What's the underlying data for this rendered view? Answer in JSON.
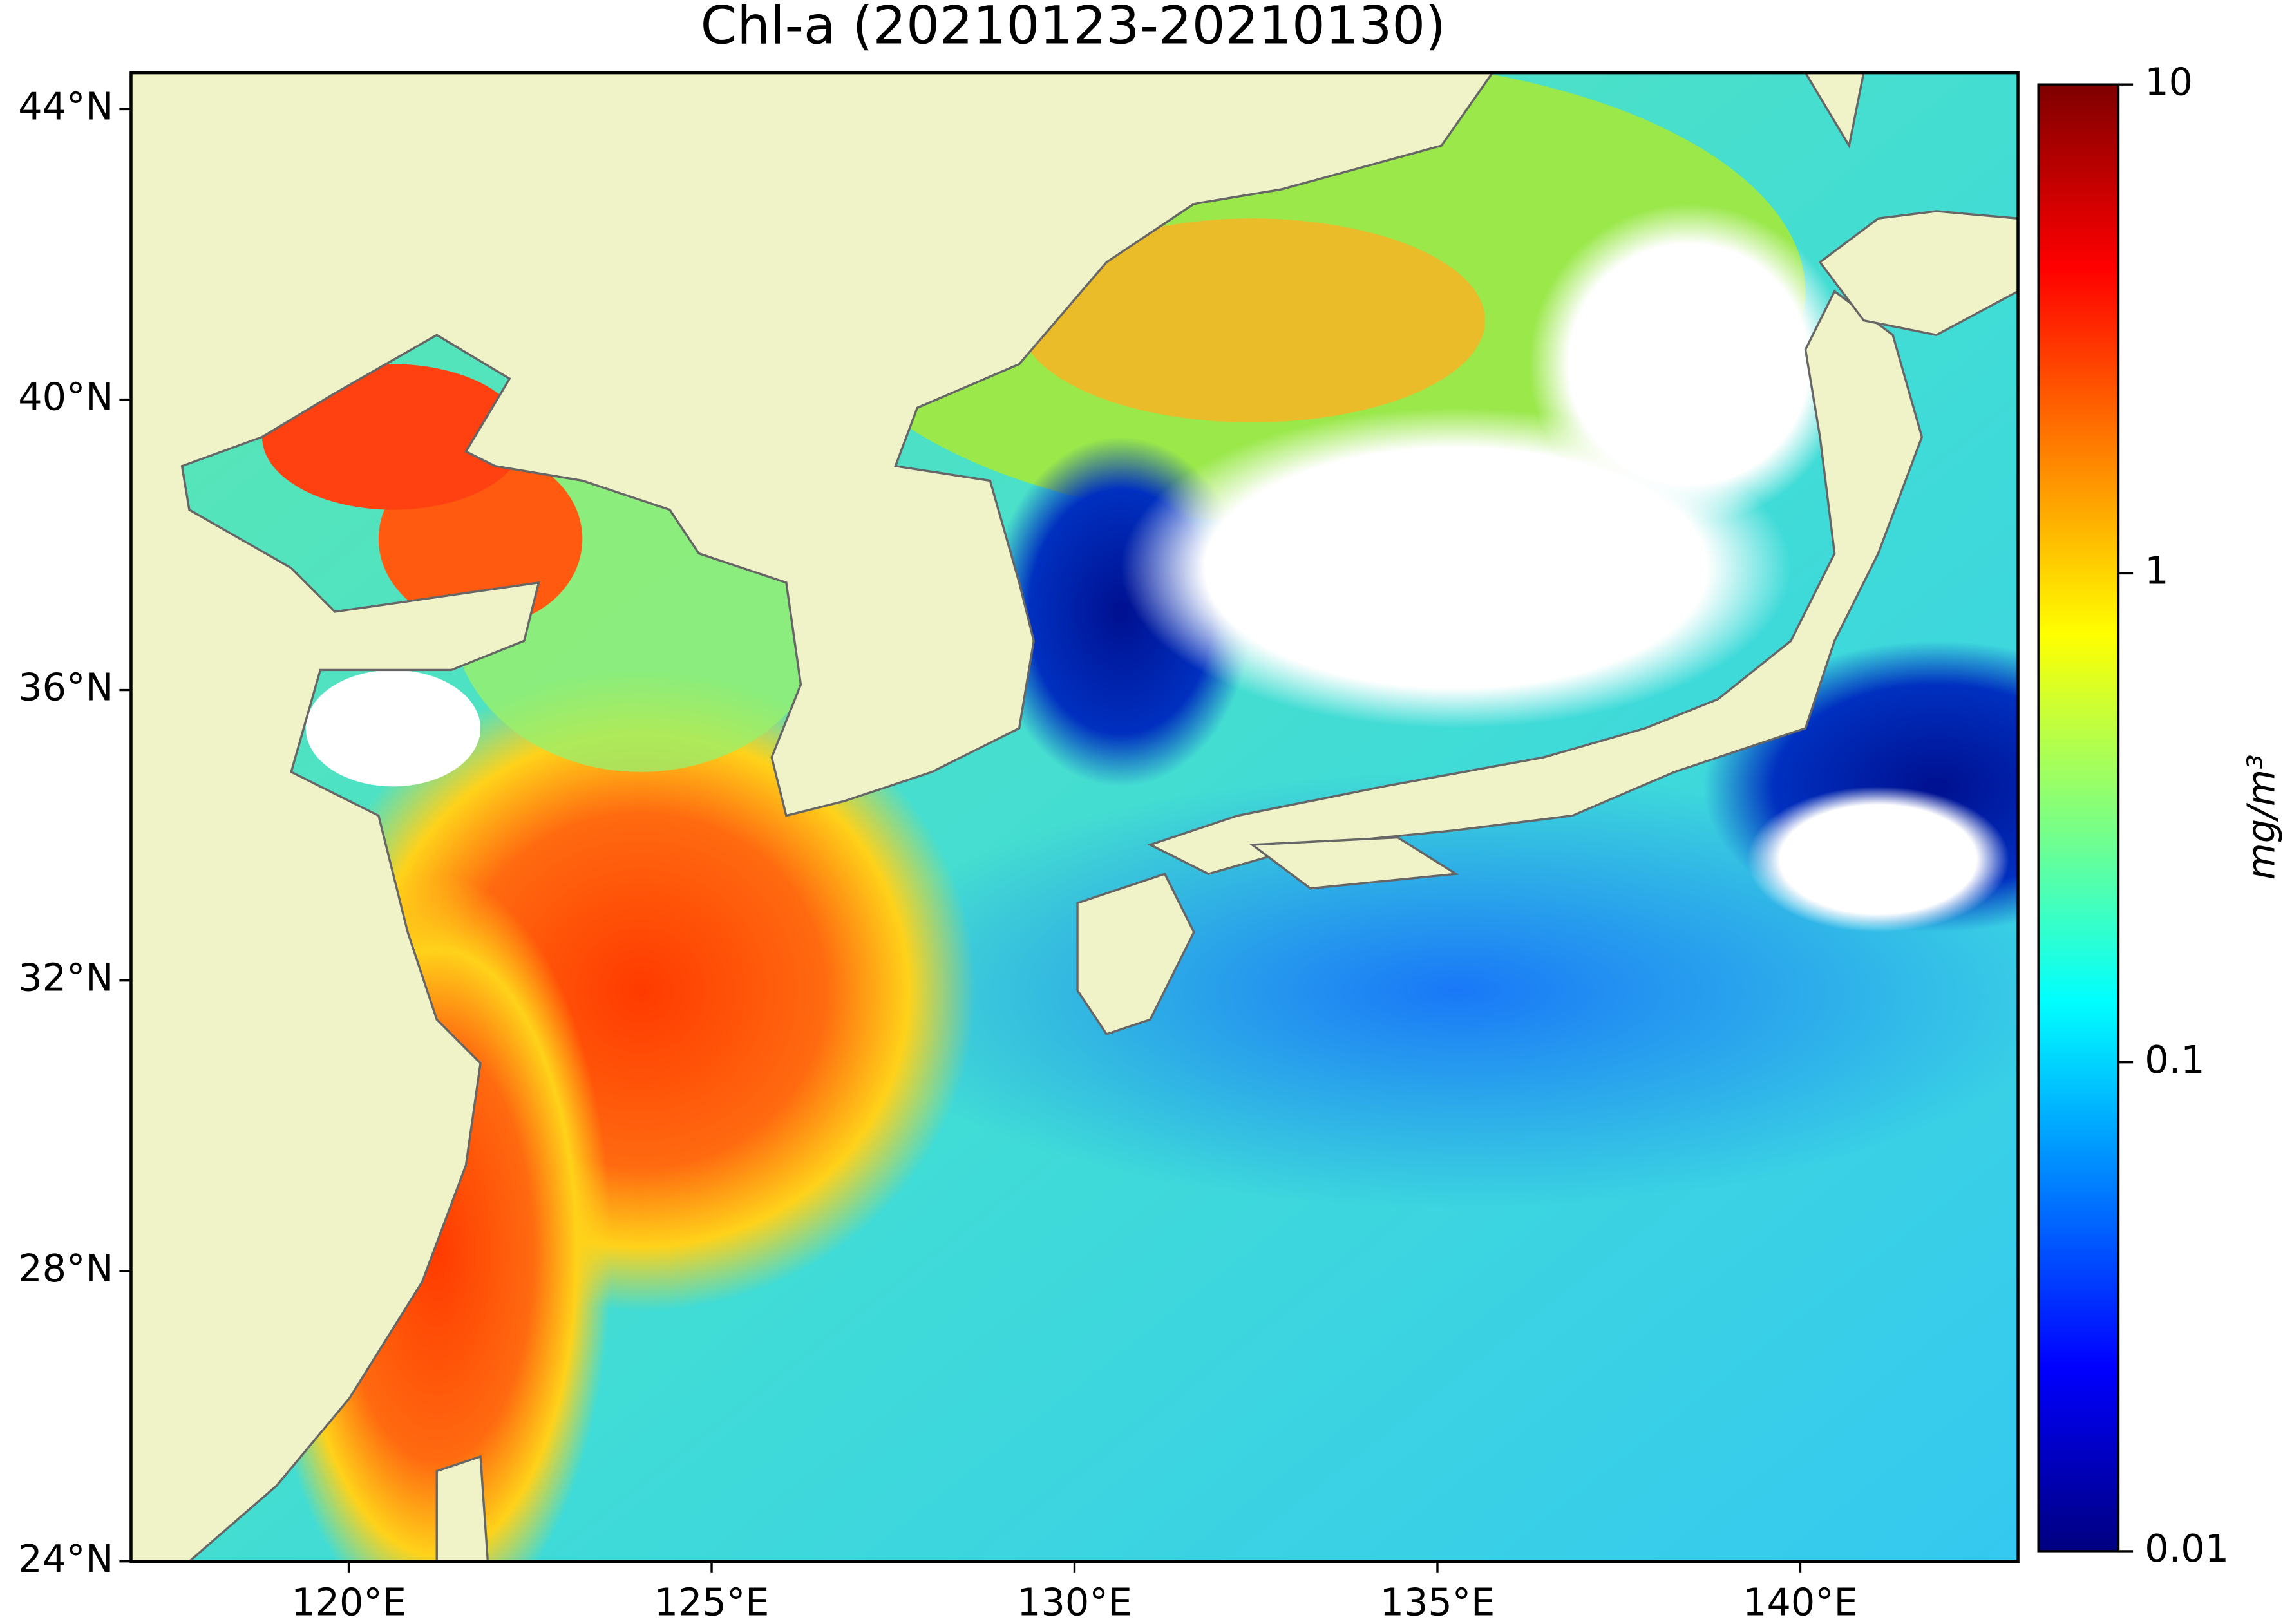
{
  "title": "Chl-a (20210123-20210130)",
  "map": {
    "xlim": [
      117,
      143
    ],
    "ylim": [
      24,
      44.5
    ],
    "xticks": [
      {
        "value": 120,
        "label": "120°E"
      },
      {
        "value": 125,
        "label": "125°E"
      },
      {
        "value": 130,
        "label": "130°E"
      },
      {
        "value": 135,
        "label": "135°E"
      },
      {
        "value": 140,
        "label": "140°E"
      }
    ],
    "yticks": [
      {
        "value": 24,
        "label": "24°N"
      },
      {
        "value": 28,
        "label": "28°N"
      },
      {
        "value": 32,
        "label": "32°N"
      },
      {
        "value": 36,
        "label": "36°N"
      },
      {
        "value": 40,
        "label": "40°N"
      },
      {
        "value": 44,
        "label": "44°N"
      }
    ]
  },
  "colorbar": {
    "label": "mg/m³",
    "lim": [
      0.01,
      10
    ],
    "scale": "log",
    "ticks": [
      0.01,
      0.1,
      1,
      10
    ],
    "colormap": "jet"
  }
}
